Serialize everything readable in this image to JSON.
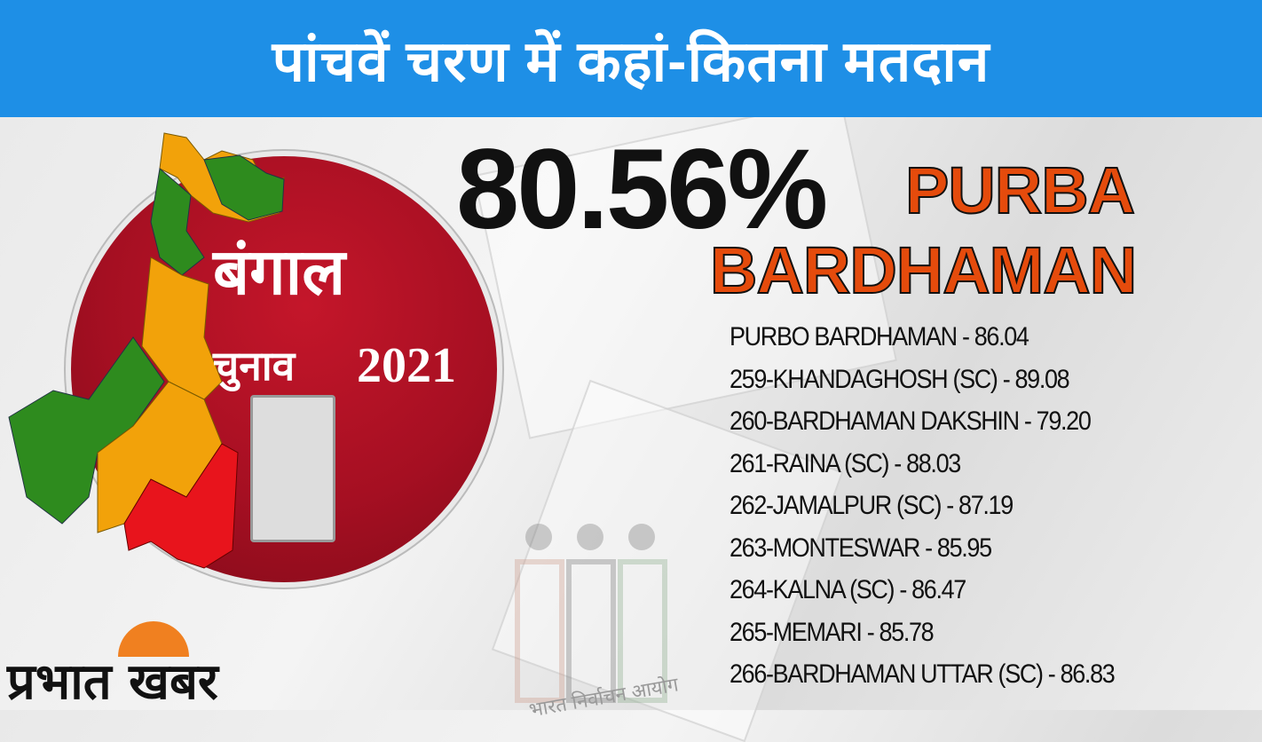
{
  "header": {
    "title": "पांचवें चरण में कहां-कितना मतदान"
  },
  "emblem": {
    "line1": "बंगाल",
    "line2": "चुनाव",
    "year": "2021"
  },
  "summary": {
    "turnout": "80.56%",
    "district_line1": "PURBA",
    "district_line2": "BARDHAMAN"
  },
  "constituencies": [
    "PURBO BARDHAMAN - 86.04",
    "259-KHANDAGHOSH (SC) - 89.08",
    "260-BARDHAMAN DAKSHIN - 79.20",
    "261-RAINA (SC) - 88.03",
    "262-JAMALPUR (SC) - 87.19",
    "263-MONTESWAR - 85.95",
    "264-KALNA (SC) - 86.47",
    "265-MEMARI - 85.78",
    "266-BARDHAMAN UTTAR (SC) - 86.83"
  ],
  "logo": {
    "text": "प्रभात खबर"
  },
  "watermark": {
    "text": "भारत निर्वाचन आयोग"
  },
  "colors": {
    "header": "#1e8fe6",
    "district": "#e54b0c",
    "map_green": "#2e8b1e",
    "map_orange": "#f2a20a",
    "map_red": "#e8141c"
  }
}
